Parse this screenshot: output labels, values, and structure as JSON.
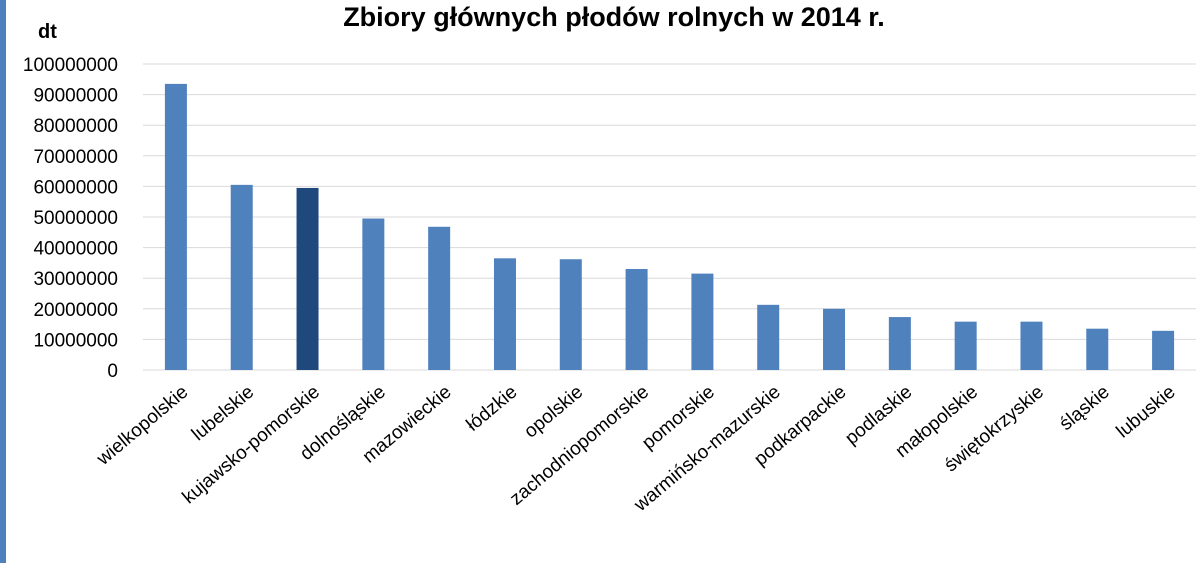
{
  "chart_data": {
    "type": "bar",
    "title": "Zbiory głównych płodów rolnych w 2014 r.",
    "ylabel": "dt",
    "xlabel": "",
    "ylim": [
      0,
      100000000
    ],
    "yticks": [
      "0",
      "10000000",
      "20000000",
      "30000000",
      "40000000",
      "50000000",
      "60000000",
      "70000000",
      "80000000",
      "90000000",
      "100000000"
    ],
    "grid": true,
    "legend": "none",
    "categories": [
      "wielkopolskie",
      "lubelskie",
      "kujawsko-pomorskie",
      "dolnośląskie",
      "mazowieckie",
      "łódzkie",
      "opolskie",
      "zachodniopomorskie",
      "pomorskie",
      "warmińsko-mazurskie",
      "podkarpackie",
      "podlaskie",
      "małopolskie",
      "świętokrzyskie",
      "śląskie",
      "lubuskie"
    ],
    "values": [
      93500000,
      60500000,
      59500000,
      49500000,
      46800000,
      36500000,
      36200000,
      33000000,
      31500000,
      21300000,
      20000000,
      17300000,
      15800000,
      15800000,
      13500000,
      12800000
    ],
    "colors": {
      "bar": "#4f81bd",
      "highlight": "#1f497d",
      "highlight_category": "kujawsko-pomorskie",
      "grid": "#d9d9d9",
      "frame": "#4f81bd"
    }
  }
}
